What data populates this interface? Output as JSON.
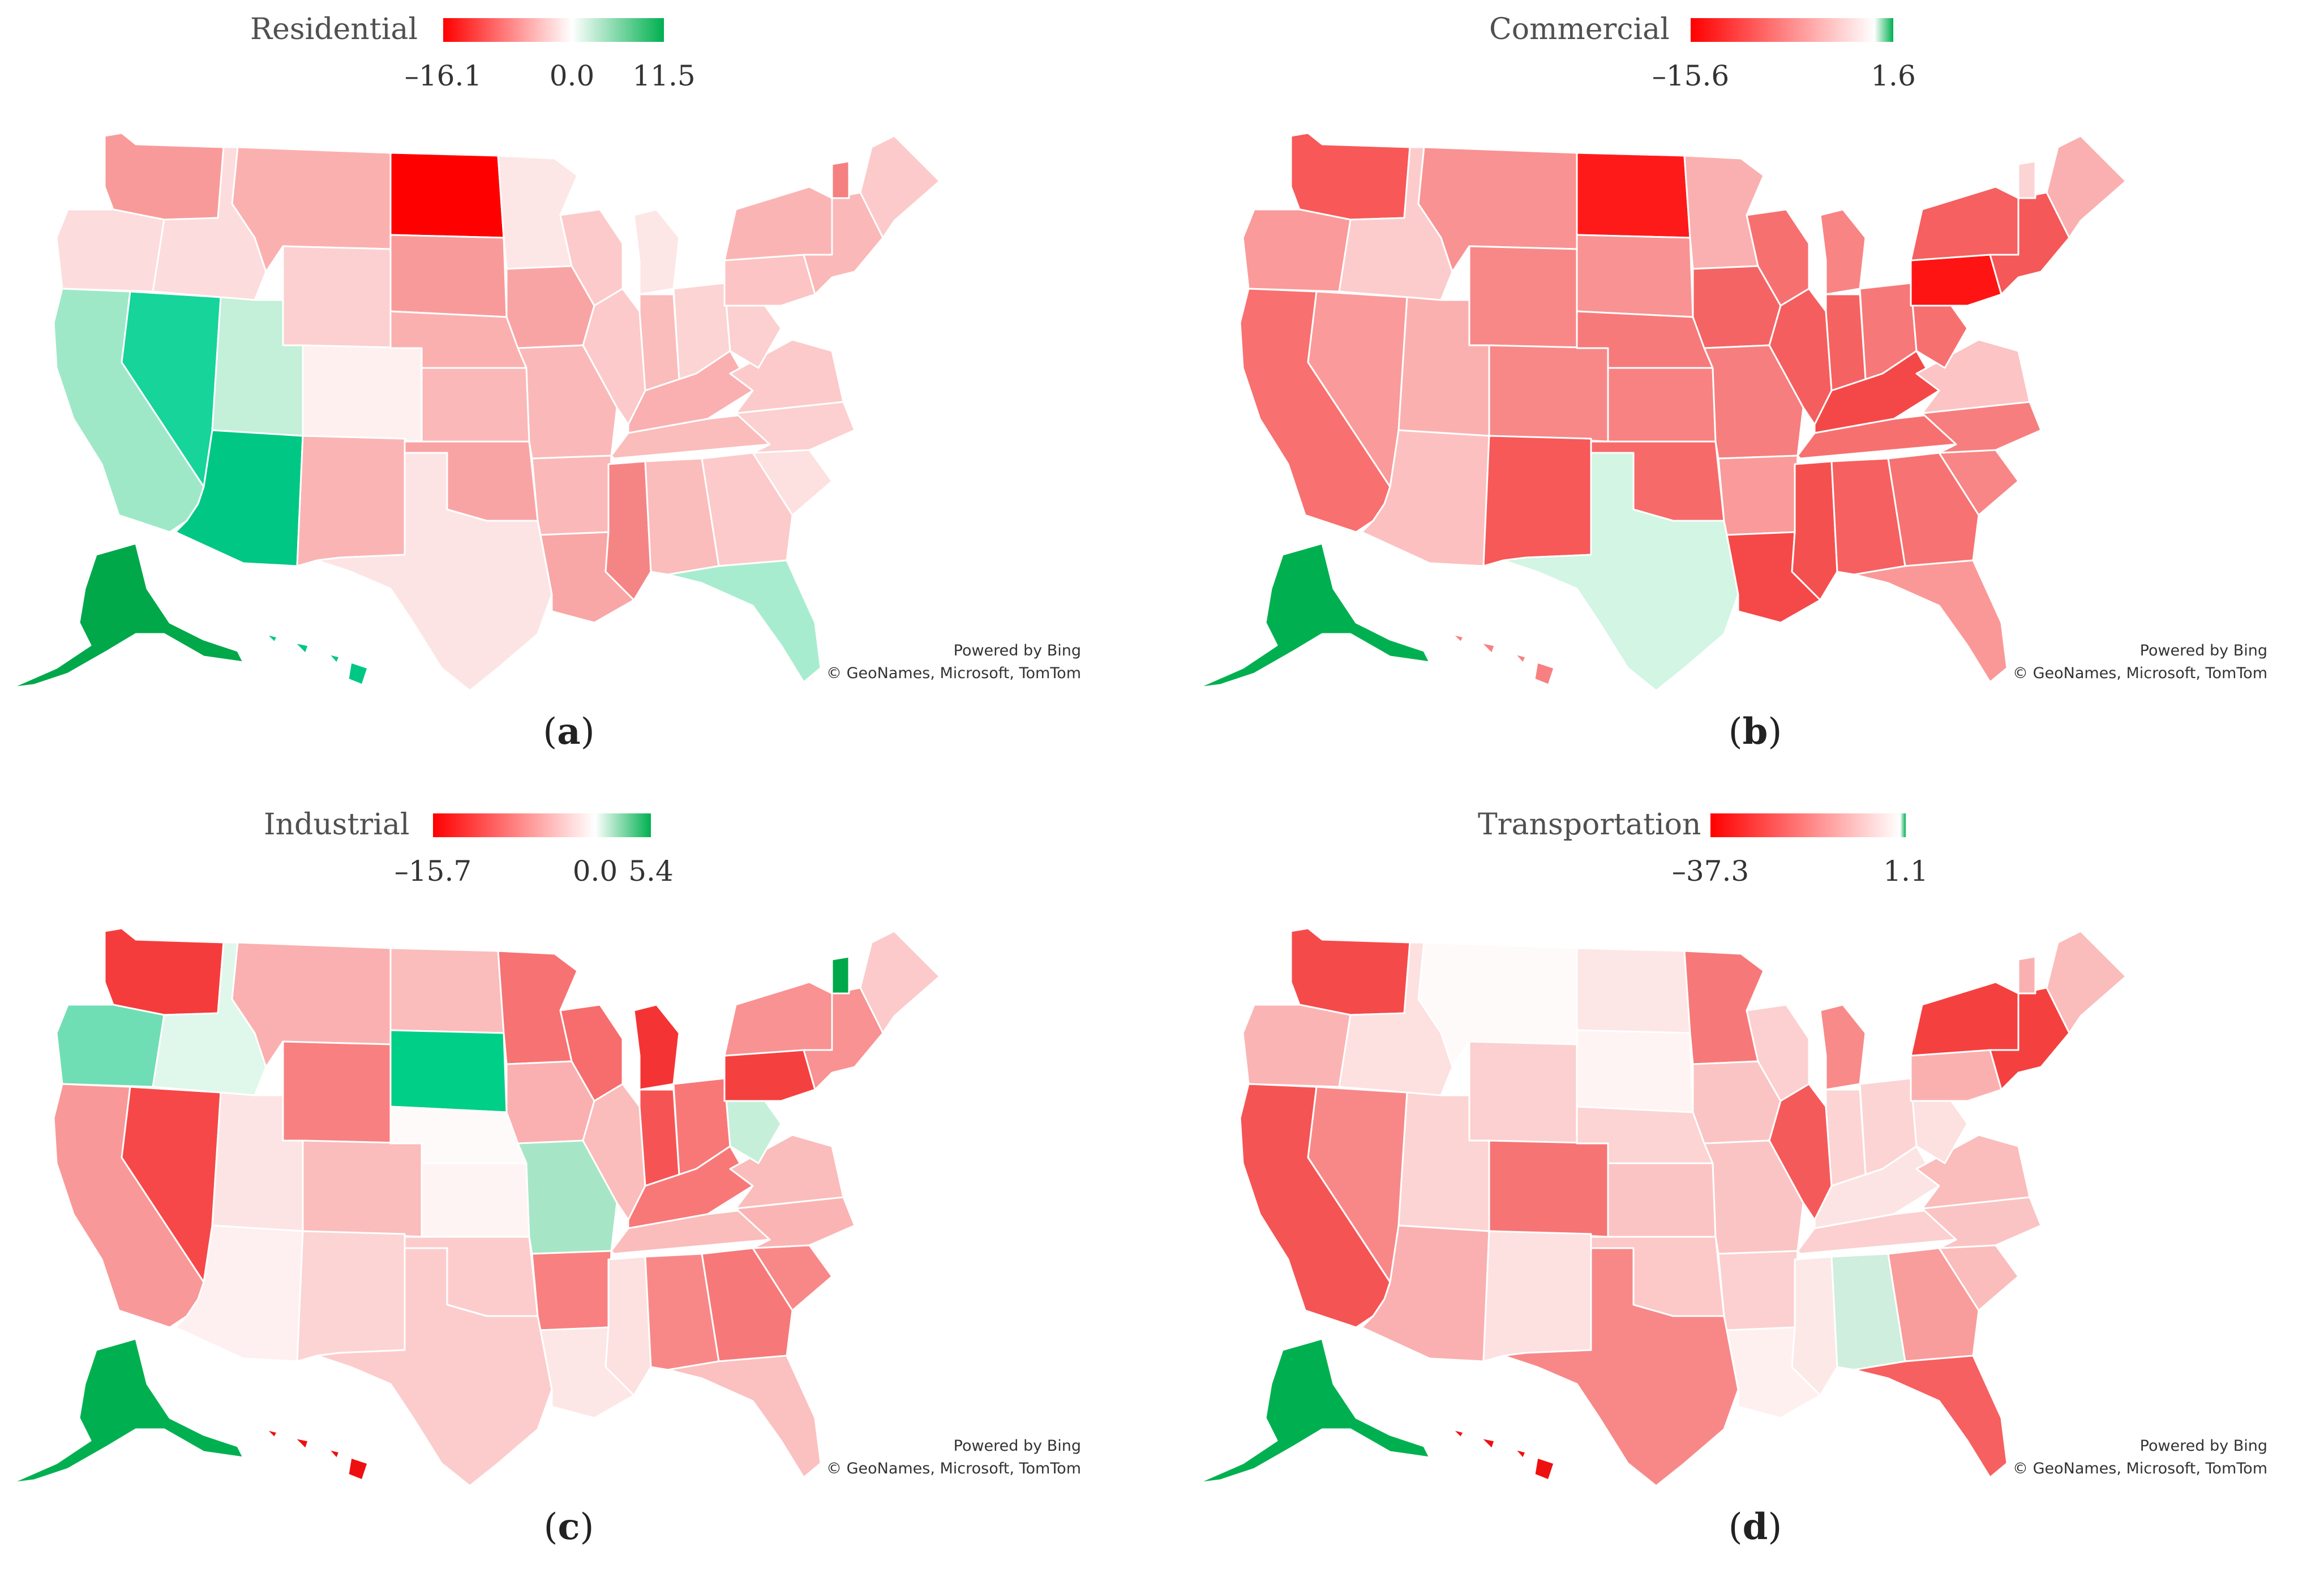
{
  "panels": [
    {
      "id": "a",
      "legend": {
        "title": "Residential",
        "min_label": "–16.1",
        "mid_label": "0.0",
        "max_label": "11.5",
        "min": -16.1,
        "max": 11.5,
        "colors": [
          "#ff0000",
          "#ffffff",
          "#00b050"
        ]
      },
      "credit": {
        "line1": "Powered by Bing",
        "line2": "© GeoNames, Microsoft, TomTom"
      },
      "caption": {
        "open": "(",
        "letter": "a",
        "close": ")"
      },
      "fills": {
        "wa": "#f99a9a",
        "or": "#fcdcdc",
        "ca": "#9ee8c8",
        "nv": "#16d49a",
        "id": "#fcdcdc",
        "mt": "#fbb0b0",
        "wy": "#fcd0d0",
        "ut": "#c4efd9",
        "co": "#fff0f0",
        "az": "#00c784",
        "nm": "#fab4b4",
        "nd": "#ff0000",
        "sd": "#f99a9a",
        "ne": "#fbb0b0",
        "ks": "#fbb8b8",
        "ok": "#f9a4a4",
        "tx": "#fde4e4",
        "mn": "#fde6e6",
        "ia": "#f9a4a4",
        "mo": "#fbb8b8",
        "ar": "#fbb8b8",
        "la": "#f9a6a6",
        "wi": "#fccaca",
        "il": "#fccaca",
        "ms": "#f58585",
        "mi": "#fde6e6",
        "in": "#fbbcbc",
        "oh": "#fcd4d4",
        "ky": "#fab0b0",
        "tn": "#fbbcbc",
        "al": "#fbbcbc",
        "ga": "#fccaca",
        "fl": "#a8ecd0",
        "sc": "#fde0e0",
        "nc": "#fcd0d0",
        "va": "#fccaca",
        "wv": "#fcd0d0",
        "pa": "#fcc4c4",
        "ny": "#fbb4b4",
        "ne-states": "#fbb8b8",
        "me": "#fccaca",
        "vt": "#f58080",
        "ak": "#00a84a",
        "hi": "#00c784"
      }
    },
    {
      "id": "b",
      "legend": {
        "title": "Commercial",
        "min_label": "–15.6",
        "mid_label": "",
        "max_label": "1.6",
        "min": -15.6,
        "max": 1.6,
        "colors": [
          "#ff0000",
          "#ffffff",
          "#00b050"
        ]
      },
      "credit": {
        "line1": "Powered by Bing",
        "line2": "© GeoNames, Microsoft, TomTom"
      },
      "caption": {
        "open": "(",
        "letter": "b",
        "close": ")"
      },
      "fills": {
        "wa": "#f85858",
        "or": "#fa9a9a",
        "ca": "#f87070",
        "nv": "#fa9a9a",
        "id": "#fccccc",
        "mt": "#f99292",
        "wy": "#f88888",
        "ut": "#fbb0b0",
        "co": "#f88888",
        "az": "#fcc0c0",
        "nm": "#f75858",
        "nd": "#ff1a1a",
        "sd": "#f99292",
        "ne": "#f77a7a",
        "ks": "#f88282",
        "ok": "#f76a6a",
        "tx": "#d2f5e4",
        "mn": "#fab0b0",
        "ia": "#f56464",
        "mo": "#f77e7e",
        "ar": "#fa9a9a",
        "la": "#f54848",
        "wi": "#f77070",
        "il": "#f55e5e",
        "ms": "#f55050",
        "mi": "#f88484",
        "in": "#f56262",
        "oh": "#f77878",
        "ky": "#f44848",
        "tn": "#f77070",
        "al": "#f66060",
        "ga": "#f77272",
        "fl": "#fa9898",
        "sc": "#f88686",
        "nc": "#f77e7e",
        "va": "#fcc4c4",
        "wv": "#f77070",
        "pa": "#ff1414",
        "ny": "#f66060",
        "ne-states": "#f55858",
        "me": "#fab0b0",
        "vt": "#fcd4d4",
        "ak": "#00b050",
        "hi": "#f88080"
      }
    },
    {
      "id": "c",
      "legend": {
        "title": "Industrial",
        "min_label": "–15.7",
        "mid_label": "0.0",
        "max_label": "5.4",
        "min": -15.7,
        "max": 5.4,
        "colors": [
          "#ff0000",
          "#ffffff",
          "#00b050"
        ]
      },
      "credit": {
        "line1": "Powered by Bing",
        "line2": "© GeoNames, Microsoft, TomTom"
      },
      "caption": {
        "open": "(",
        "letter": "c",
        "close": ")"
      },
      "fills": {
        "wa": "#f53c3c",
        "or": "#6fdeb4",
        "ca": "#f99898",
        "nv": "#f64848",
        "id": "#e0f7ec",
        "mt": "#fab0b0",
        "wy": "#f88080",
        "ut": "#fde4e4",
        "co": "#fbbcbc",
        "az": "#fef0f0",
        "nm": "#fcd4d4",
        "nd": "#fbbcbc",
        "sd": "#00cf88",
        "ne": "#fffafa",
        "ks": "#fff4f4",
        "ok": "#fccccc",
        "tx": "#fccccc",
        "mn": "#f77272",
        "ia": "#fab0b0",
        "mo": "#a6e6c6",
        "ar": "#f88080",
        "la": "#fde6e6",
        "wi": "#f76c6c",
        "il": "#fbbcbc",
        "ms": "#fde0e0",
        "mi": "#f43434",
        "in": "#f65454",
        "oh": "#f87878",
        "ky": "#f87878",
        "tn": "#fbbcbc",
        "al": "#f88888",
        "ga": "#f77878",
        "fl": "#fbc0c0",
        "sc": "#f88888",
        "nc": "#fbb4b4",
        "va": "#fbbcbc",
        "wv": "#c6efd9",
        "pa": "#f54040",
        "ny": "#f99292",
        "ne-states": "#f99292",
        "me": "#fccaca",
        "vt": "#00a84a",
        "ak": "#00b050",
        "hi": "#ee1010"
      }
    },
    {
      "id": "d",
      "legend": {
        "title": "Transportation",
        "min_label": "–37.3",
        "mid_label": "",
        "max_label": "1.1",
        "min": -37.3,
        "max": 1.1,
        "colors": [
          "#ff0000",
          "#ffffff",
          "#00b050"
        ]
      },
      "credit": {
        "line1": "Powered by Bing",
        "line2": "© GeoNames, Microsoft, TomTom"
      },
      "caption": {
        "open": "(",
        "letter": "d",
        "close": ")"
      },
      "fills": {
        "wa": "#f54a4a",
        "or": "#fbb4b4",
        "ca": "#f55454",
        "nv": "#f88888",
        "id": "#fde0e0",
        "mt": "#fffafa",
        "wy": "#fcd0d0",
        "ut": "#fcd4d4",
        "co": "#f77474",
        "az": "#fab0b0",
        "nm": "#fde0e0",
        "nd": "#fde6e6",
        "sd": "#fff4f4",
        "ne": "#fcd4d4",
        "ks": "#fbc4c4",
        "ok": "#fcc8c8",
        "tx": "#f88888",
        "mn": "#f77878",
        "ia": "#fbc4c4",
        "mo": "#fbc4c4",
        "ar": "#fcd0d0",
        "la": "#fff0f0",
        "ms": "#fde8e8",
        "wi": "#fcd0d0",
        "il": "#f55a5a",
        "mi": "#f88a8a",
        "in": "#fcd4d4",
        "oh": "#fcd4d4",
        "ky": "#fde4e4",
        "tn": "#fcd0d0",
        "al": "#cfeedd",
        "ga": "#f99c9c",
        "fl": "#f66060",
        "sc": "#fbbcbc",
        "nc": "#fbc4c4",
        "va": "#fbbcbc",
        "wv": "#fde0e0",
        "pa": "#fbb0b0",
        "ny": "#f54040",
        "ne-states": "#f54040",
        "me": "#fbbcbc",
        "vt": "#fab0b0",
        "ak": "#00b050",
        "hi": "#ee1010"
      }
    }
  ]
}
